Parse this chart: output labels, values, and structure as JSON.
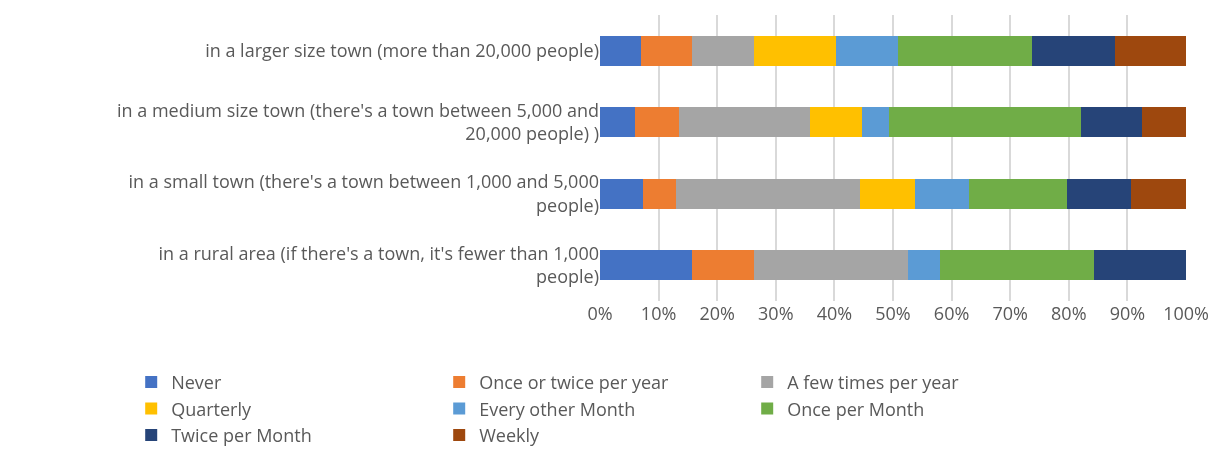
{
  "chart_data": {
    "type": "bar",
    "orientation": "horizontal",
    "stacked": true,
    "categories": [
      "in a larger size town (more than 20,000 people)",
      "in a medium size town (there's a town between 5,000 and 20,000 people) )",
      "in a small town (there's a town between 1,000 and 5,000 people)",
      "in a rural area (if there's a town, it's fewer than 1,000 people)"
    ],
    "series": [
      {
        "name": "Never",
        "color": "#4472c4",
        "values": [
          7.0,
          5.9,
          7.4,
          15.7
        ]
      },
      {
        "name": "Once or twice per year",
        "color": "#ed7d31",
        "values": [
          8.7,
          7.5,
          5.6,
          10.6
        ]
      },
      {
        "name": "A few times per year",
        "color": "#a5a5a5",
        "values": [
          10.6,
          22.5,
          31.4,
          26.3
        ]
      },
      {
        "name": "Quarterly",
        "color": "#ffc000",
        "values": [
          14.0,
          8.8,
          9.4,
          0
        ]
      },
      {
        "name": "Every other Month",
        "color": "#5b9bd5",
        "values": [
          10.6,
          4.6,
          9.1,
          5.4
        ]
      },
      {
        "name": "Once per Month",
        "color": "#70ad47",
        "values": [
          22.8,
          32.8,
          16.8,
          26.3
        ]
      },
      {
        "name": "Twice per Month",
        "color": "#264478",
        "values": [
          14.1,
          10.4,
          10.9,
          15.7
        ]
      },
      {
        "name": "Weekly",
        "color": "#9e480e",
        "values": [
          12.2,
          7.5,
          9.4,
          0
        ]
      }
    ],
    "xlim": [
      0,
      100
    ],
    "xticks": [
      {
        "value": 0,
        "label": "0%"
      },
      {
        "value": 10,
        "label": "10%"
      },
      {
        "value": 20,
        "label": "20%"
      },
      {
        "value": 30,
        "label": "30%"
      },
      {
        "value": 40,
        "label": "40%"
      },
      {
        "value": 50,
        "label": "50%"
      },
      {
        "value": 60,
        "label": "60%"
      },
      {
        "value": 70,
        "label": "70%"
      },
      {
        "value": 80,
        "label": "80%"
      },
      {
        "value": 90,
        "label": "90%"
      },
      {
        "value": 100,
        "label": "100%"
      }
    ],
    "grid": "x",
    "legend": "bottom"
  }
}
